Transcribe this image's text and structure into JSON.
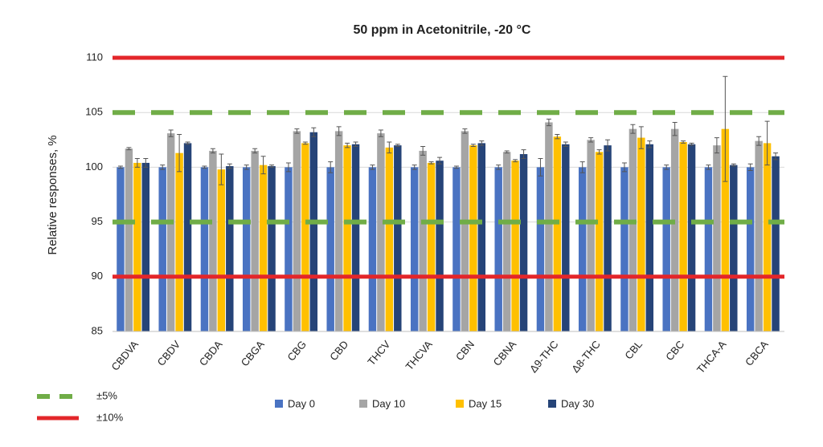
{
  "chart_data": {
    "type": "bar",
    "title": "50 ppm in Acetonitrile, -20 °C",
    "y_label": "Relative responses, %",
    "categories": [
      "CBDVA",
      "CBDV",
      "CBDA",
      "CBGA",
      "CBG",
      "CBD",
      "THCV",
      "THCVA",
      "CBN",
      "CBNA",
      "Δ9-THC",
      "Δ8-THC",
      "CBL",
      "CBC",
      "THCA-A",
      "CBCA"
    ],
    "series": [
      {
        "name": "Day 0",
        "color": "#4a73c2",
        "values": [
          100,
          100,
          100,
          100,
          100,
          100,
          100,
          100,
          100,
          100,
          100,
          100,
          100,
          100,
          100,
          100
        ],
        "errors": [
          0.1,
          0.2,
          0.1,
          0.2,
          0.4,
          0.5,
          0.2,
          0.2,
          0.1,
          0.2,
          0.8,
          0.5,
          0.4,
          0.2,
          0.2,
          0.3
        ]
      },
      {
        "name": "Day 10",
        "color": "#a5a5a5",
        "values": [
          101.7,
          103.1,
          101.5,
          101.5,
          103.3,
          103.3,
          103.1,
          101.5,
          103.3,
          101.4,
          104.1,
          102.5,
          103.5,
          103.5,
          102,
          102.4
        ],
        "errors": [
          0.1,
          0.3,
          0.2,
          0.2,
          0.2,
          0.4,
          0.3,
          0.4,
          0.2,
          0.1,
          0.3,
          0.2,
          0.4,
          0.6,
          0.7,
          0.4
        ]
      },
      {
        "name": "Day 15",
        "color": "#ffc000",
        "values": [
          100.4,
          101.3,
          99.8,
          100.2,
          102.2,
          102,
          101.8,
          100.4,
          102,
          100.6,
          102.8,
          101.4,
          102.7,
          102.3,
          103.5,
          102.2
        ],
        "errors": [
          0.4,
          1.7,
          1.4,
          0.8,
          0.1,
          0.2,
          0.5,
          0.1,
          0.1,
          0.1,
          0.2,
          0.2,
          1,
          0.1,
          4.8,
          2
        ]
      },
      {
        "name": "Day 30",
        "color": "#264478",
        "values": [
          100.4,
          102.2,
          100.1,
          100.1,
          103.2,
          102.1,
          102,
          100.6,
          102.2,
          101.2,
          102.1,
          102,
          102.1,
          102.1,
          100.2,
          101
        ],
        "errors": [
          0.4,
          0.1,
          0.2,
          0.1,
          0.4,
          0.2,
          0.1,
          0.3,
          0.2,
          0.4,
          0.2,
          0.5,
          0.3,
          0.1,
          0.1,
          0.3
        ]
      }
    ],
    "reference_lines": [
      {
        "name": "±5%",
        "values": [
          95,
          105
        ],
        "color": "#70ad47",
        "dashed": true
      },
      {
        "name": "±10%",
        "values": [
          90,
          110
        ],
        "color": "#e3262a",
        "dashed": false
      }
    ],
    "ylim": [
      85,
      110
    ],
    "yticks": [
      85,
      90,
      95,
      100,
      105,
      110
    ],
    "grid": true
  }
}
